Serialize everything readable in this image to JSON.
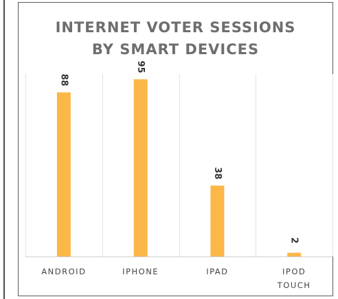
{
  "chart_data": {
    "type": "bar",
    "title": [
      "INTERNET VOTER SESSIONS",
      "BY SMART DEVICES"
    ],
    "categories": [
      [
        "ANDROID"
      ],
      [
        "IPHONE"
      ],
      [
        "IPAD"
      ],
      [
        "IPOD",
        "TOUCH"
      ]
    ],
    "values": [
      88,
      95,
      38,
      2
    ],
    "ylim": [
      0,
      100
    ],
    "grid": "vertical separators",
    "legend": "none",
    "bar_color": "#fbb748"
  }
}
